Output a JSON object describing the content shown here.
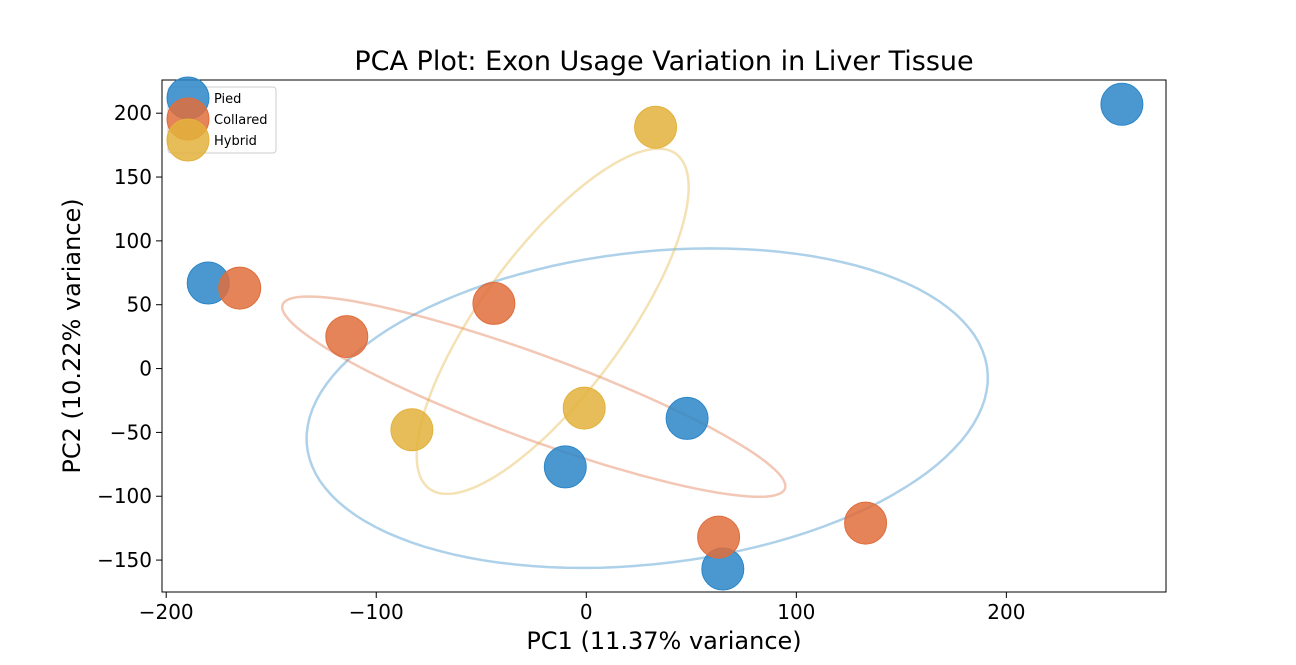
{
  "chart_data": {
    "type": "scatter",
    "title": "PCA Plot: Exon Usage Variation in Liver Tissue",
    "xlabel": "PC1 (11.37% variance)",
    "ylabel": "PC2 (10.22% variance)",
    "xlim": [
      -202,
      276
    ],
    "ylim": [
      -175,
      226
    ],
    "xticks": [
      -200,
      -100,
      0,
      100,
      200
    ],
    "yticks": [
      -150,
      -100,
      -50,
      0,
      50,
      100,
      150,
      200
    ],
    "xtick_labels": [
      "−200",
      "−100",
      "0",
      "100",
      "200"
    ],
    "ytick_labels": [
      "−150",
      "−100",
      "−50",
      "0",
      "50",
      "100",
      "150",
      "200"
    ],
    "grid": false,
    "legend_position": "top-left",
    "series": [
      {
        "name": "Pied",
        "color": "#2b86c8",
        "points": [
          {
            "x": -180,
            "y": 67
          },
          {
            "x": 48,
            "y": -39
          },
          {
            "x": -10,
            "y": -77
          },
          {
            "x": 65,
            "y": -157
          },
          {
            "x": 255,
            "y": 207
          }
        ],
        "ellipse": {
          "cx": 29,
          "cy": -31,
          "rx": 166,
          "ry": 120,
          "angle_deg": 18
        }
      },
      {
        "name": "Collared",
        "color": "#e06d3c",
        "points": [
          {
            "x": -165,
            "y": 63
          },
          {
            "x": -114,
            "y": 25
          },
          {
            "x": -44,
            "y": 51
          },
          {
            "x": 63,
            "y": -132
          },
          {
            "x": 133,
            "y": -121
          }
        ],
        "ellipse": {
          "cx": -25,
          "cy": -22,
          "rx": 140,
          "ry": 30,
          "angle_deg": -32
        }
      },
      {
        "name": "Hybrid",
        "color": "#e3b23c",
        "points": [
          {
            "x": -83,
            "y": -48
          },
          {
            "x": -1,
            "y": -31
          },
          {
            "x": 33,
            "y": 189
          }
        ],
        "ellipse": {
          "cx": -16,
          "cy": 37,
          "rx": 145,
          "ry": 38,
          "angle_deg": 68
        }
      }
    ]
  }
}
